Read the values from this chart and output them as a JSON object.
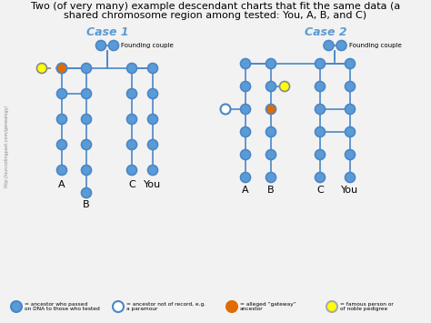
{
  "title_line1": "Two (of very many) example descendant charts that fit the same data (a",
  "title_line2": "shared chromosome region among tested: You, A, B, and C)",
  "case1_label": "Case 1",
  "case2_label": "Case 2",
  "blue": "#5b9bd5",
  "orange": "#e06c00",
  "yellow": "#ffff00",
  "line_color": "#4a86c8",
  "watermark": "http://ourcodingpast.com/genealogy/",
  "bg_color": "#f2f2f2",
  "legend_items": [
    {
      "color": "#5b9bd5",
      "filled": true,
      "outline": "#4a86c8",
      "text": "= ancestor who passed\non DNA to those who tested"
    },
    {
      "color": "#ffffff",
      "filled": false,
      "outline": "#4a86c8",
      "text": "= ancestor not of record, e.g.\na paramour"
    },
    {
      "color": "#e06c00",
      "filled": true,
      "outline": "#e06c00",
      "text": "= alleged “gateway”\nancestor"
    },
    {
      "color": "#ffff00",
      "filled": true,
      "outline": "#aaaaaa",
      "text": "= famous person or\nof noble pedigree"
    }
  ]
}
